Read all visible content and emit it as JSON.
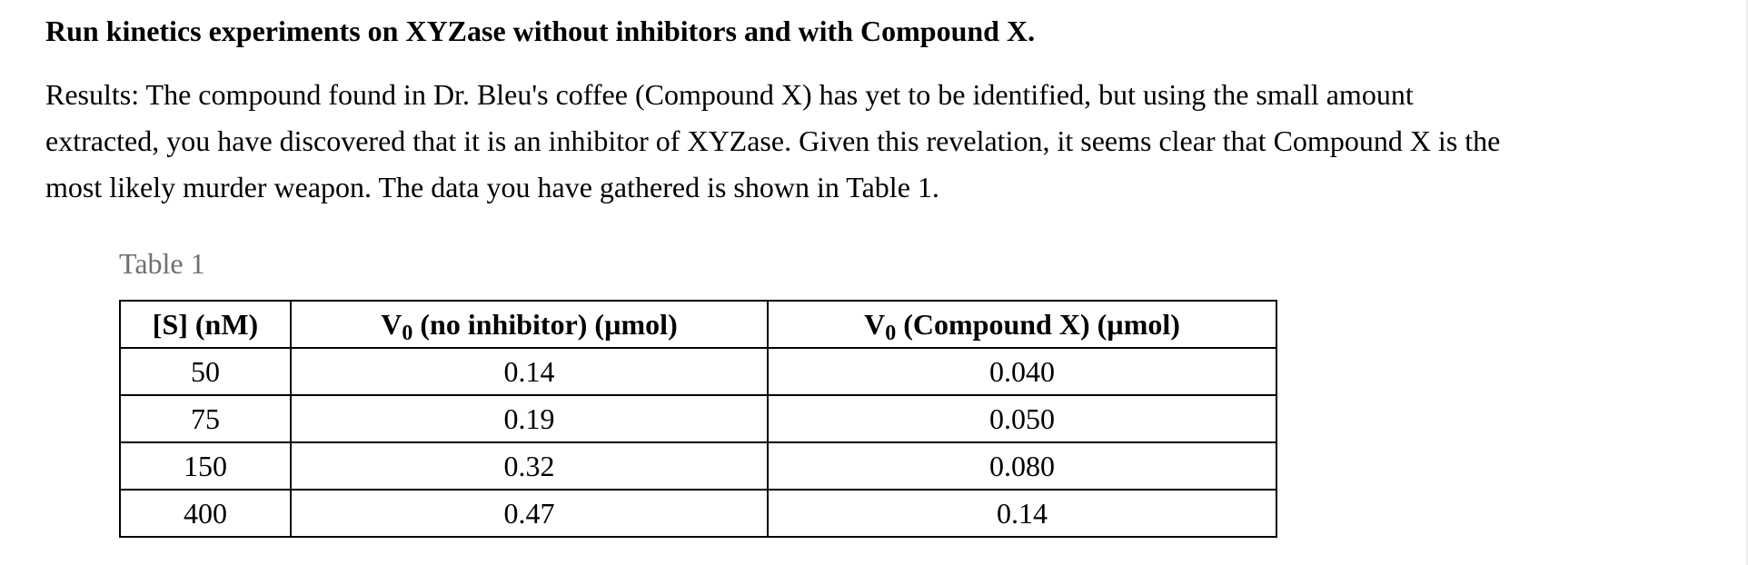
{
  "heading": "Run kinetics experiments on XYZase without inhibitors and with Compound X.",
  "results": {
    "lines": [
      "Results: The compound found in Dr. Bleu's coffee (Compound X) has yet to be identified, but using the small amount",
      "extracted, you have discovered that it is an inhibitor of XYZase. Given this revelation, it seems clear that Compound X is the",
      "most likely murder weapon. The data you have gathered is shown in Table 1."
    ]
  },
  "table": {
    "caption": "Table 1",
    "headers": [
      {
        "main": "[S] (nM)",
        "sub": "",
        "rest": ""
      },
      {
        "main": "V",
        "sub": "0",
        "rest": " (no inhibitor) (µmol)"
      },
      {
        "main": "V",
        "sub": "0",
        "rest": " (Compound X) (µmol)"
      }
    ],
    "rows": [
      [
        "50",
        "0.14",
        "0.040"
      ],
      [
        "75",
        "0.19",
        "0.050"
      ],
      [
        "150",
        "0.32",
        "0.080"
      ],
      [
        "400",
        "0.47",
        "0.14"
      ]
    ]
  },
  "colors": {
    "text": "#000000",
    "caption": "#6f6f6f",
    "border": "#000000",
    "background": "#ffffff"
  }
}
